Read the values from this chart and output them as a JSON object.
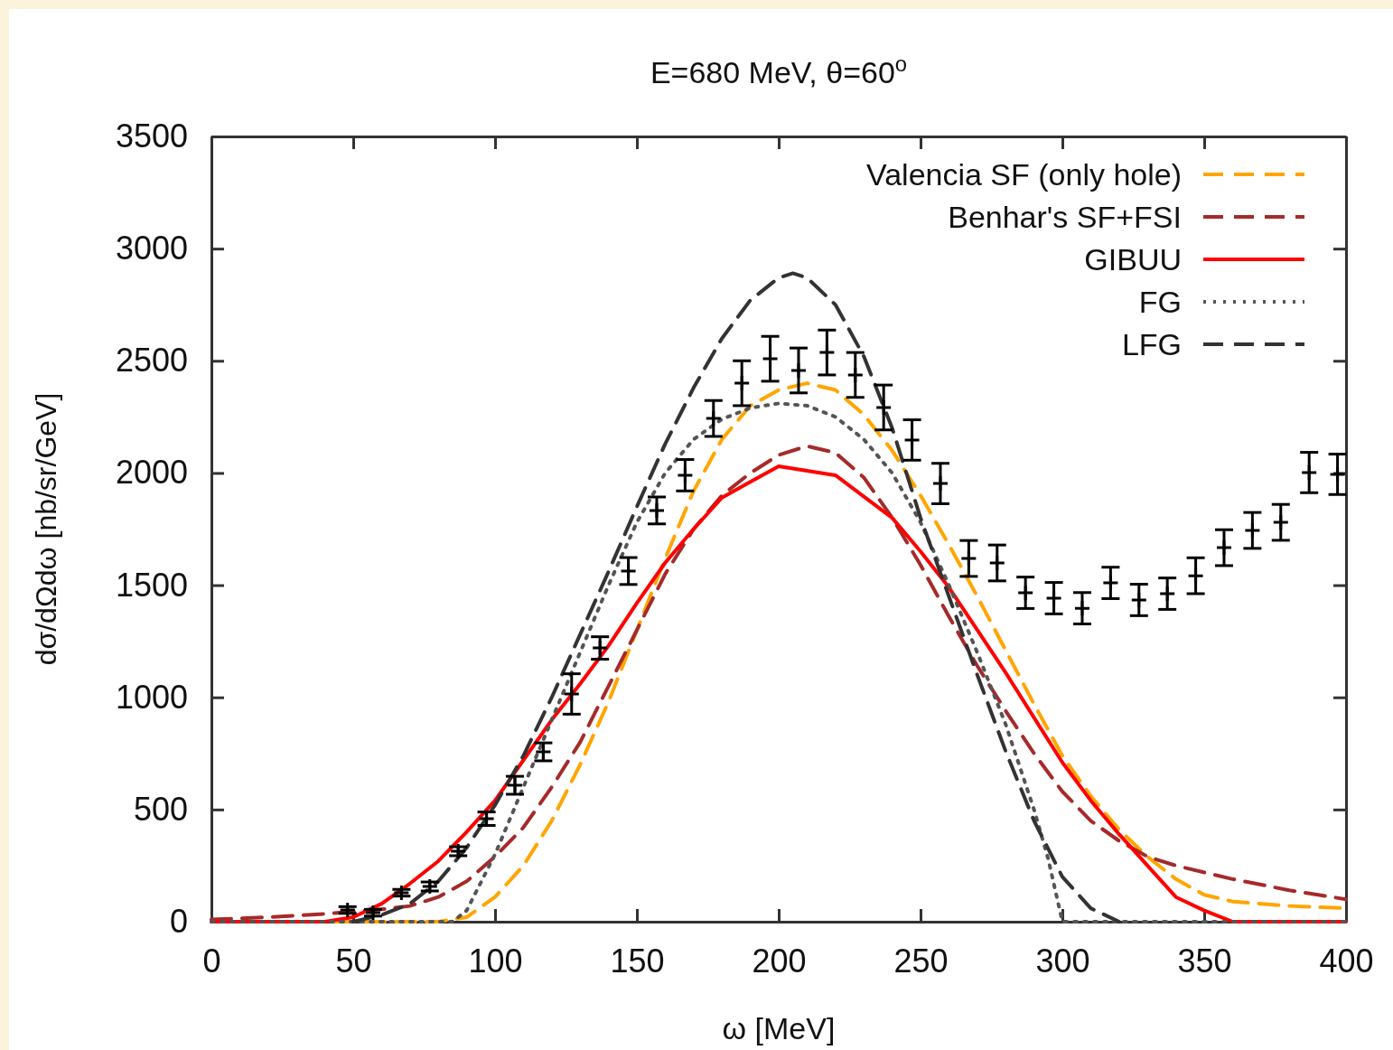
{
  "chart_data": {
    "type": "line",
    "title": "E=680 MeV, θ=60$^{o}$",
    "xlabel": "ω [MeV]",
    "ylabel": "dσ/dΩdω [nb/sr/GeV]",
    "xlim": [
      0,
      400
    ],
    "xticks": [
      0,
      50,
      100,
      150,
      200,
      250,
      300,
      350,
      400
    ],
    "ylim": [
      0,
      3500
    ],
    "yticks": [
      0,
      500,
      1000,
      1500,
      2000,
      2500,
      3000,
      3500
    ],
    "grid": false,
    "legend": "top right",
    "series": [
      {
        "name": "Valencia SF (only hole)",
        "color": "#ffa500",
        "line_style": "dashed",
        "x": [
          0,
          80,
          90,
          100,
          110,
          120,
          130,
          140,
          150,
          160,
          170,
          180,
          190,
          200,
          210,
          220,
          230,
          240,
          250,
          260,
          270,
          280,
          290,
          300,
          310,
          320,
          330,
          340,
          350,
          360,
          380,
          400
        ],
        "values": [
          0,
          0,
          20,
          110,
          250,
          450,
          700,
          980,
          1300,
          1620,
          1920,
          2150,
          2300,
          2370,
          2400,
          2370,
          2260,
          2100,
          1900,
          1680,
          1450,
          1210,
          970,
          740,
          560,
          410,
          290,
          190,
          120,
          90,
          70,
          60
        ]
      },
      {
        "name": "Benhar's SF+FSI",
        "color": "#a52a2a",
        "line_style": "dashed",
        "x": [
          0,
          20,
          40,
          60,
          70,
          80,
          90,
          100,
          110,
          120,
          130,
          140,
          150,
          160,
          170,
          180,
          190,
          200,
          210,
          220,
          230,
          240,
          250,
          260,
          270,
          280,
          290,
          300,
          310,
          320,
          330,
          340,
          360,
          380,
          400
        ],
        "values": [
          10,
          20,
          35,
          55,
          70,
          110,
          180,
          290,
          420,
          600,
          800,
          1050,
          1300,
          1550,
          1750,
          1900,
          2000,
          2080,
          2120,
          2090,
          1980,
          1800,
          1590,
          1360,
          1140,
          940,
          750,
          580,
          450,
          360,
          290,
          250,
          190,
          140,
          100
        ]
      },
      {
        "name": "GIBUU",
        "color": "#ff0000",
        "line_style": "solid",
        "x": [
          0,
          40,
          50,
          60,
          70,
          80,
          90,
          100,
          110,
          120,
          130,
          140,
          150,
          160,
          170,
          180,
          190,
          200,
          220,
          240,
          250,
          260,
          270,
          280,
          290,
          300,
          310,
          320,
          330,
          340,
          350,
          360,
          400
        ],
        "values": [
          0,
          0,
          20,
          80,
          170,
          270,
          400,
          540,
          720,
          900,
          1060,
          1230,
          1420,
          1600,
          1750,
          1890,
          1960,
          2030,
          1990,
          1800,
          1650,
          1490,
          1300,
          1110,
          910,
          710,
          540,
          390,
          250,
          110,
          50,
          0,
          0
        ]
      },
      {
        "name": "FG",
        "color": "#555555",
        "line_style": "dotted",
        "x": [
          0,
          85,
          90,
          100,
          110,
          120,
          130,
          140,
          150,
          160,
          170,
          180,
          190,
          200,
          210,
          220,
          230,
          240,
          250,
          260,
          270,
          280,
          290,
          295,
          300,
          400
        ],
        "values": [
          0,
          0,
          50,
          300,
          600,
          900,
          1200,
          1500,
          1780,
          2000,
          2150,
          2240,
          2290,
          2310,
          2300,
          2250,
          2150,
          2000,
          1780,
          1500,
          1200,
          880,
          500,
          280,
          0,
          0
        ]
      },
      {
        "name": "LFG",
        "color": "#333333",
        "line_style": "dashed",
        "x": [
          50,
          60,
          70,
          80,
          90,
          100,
          110,
          120,
          130,
          140,
          150,
          160,
          170,
          180,
          190,
          200,
          205,
          210,
          220,
          230,
          240,
          250,
          260,
          270,
          280,
          290,
          300,
          310,
          320
        ],
        "values": [
          0,
          30,
          80,
          180,
          330,
          520,
          740,
          1000,
          1280,
          1560,
          1850,
          2130,
          2380,
          2600,
          2770,
          2870,
          2890,
          2870,
          2750,
          2520,
          2200,
          1800,
          1450,
          1100,
          760,
          450,
          200,
          60,
          0
        ]
      },
      {
        "type": "scatter",
        "color": "#000000",
        "marker": "cross",
        "x": [
          48,
          57,
          67,
          77,
          87,
          97,
          107,
          117,
          127,
          137,
          147,
          157,
          167,
          177,
          187,
          197,
          207,
          217,
          227,
          237,
          247,
          257,
          267,
          277,
          287,
          297,
          307,
          317,
          327,
          337,
          347,
          357,
          367,
          377,
          387,
          397
        ],
        "values": [
          52,
          40,
          129,
          157,
          314,
          459,
          608,
          757,
          1015,
          1220,
          1563,
          1833,
          1990,
          2243,
          2400,
          2509,
          2457,
          2537,
          2437,
          2292,
          2147,
          1953,
          1619,
          1599,
          1466,
          1442,
          1397,
          1510,
          1434,
          1462,
          1542,
          1667,
          1744,
          1780,
          2002,
          1994
        ],
        "errors": [
          15,
          15,
          15,
          20,
          20,
          30,
          40,
          40,
          90,
          50,
          60,
          60,
          70,
          80,
          100,
          100,
          100,
          100,
          100,
          100,
          90,
          90,
          80,
          80,
          70,
          70,
          70,
          70,
          70,
          70,
          80,
          80,
          80,
          80,
          90,
          90
        ]
      }
    ]
  }
}
